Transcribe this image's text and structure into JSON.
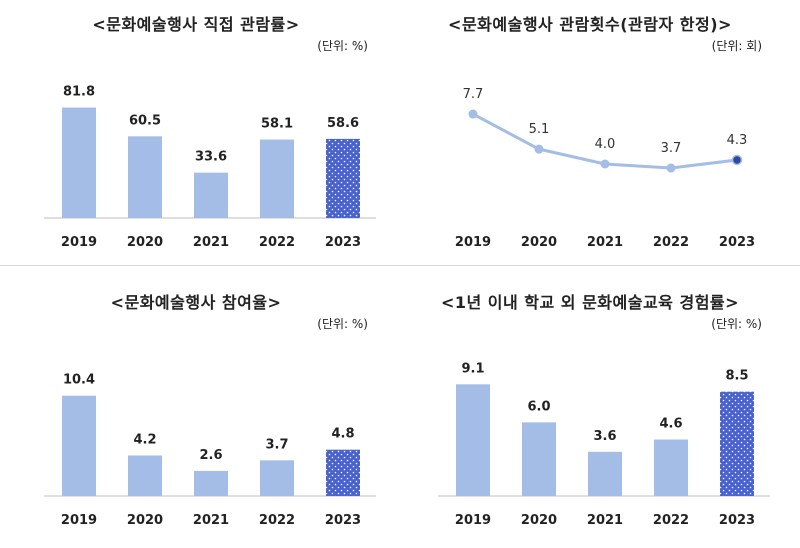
{
  "chart_data": [
    {
      "type": "bar",
      "title": "<문화예술행사 직접 관람률>",
      "unit": "(단위: %)",
      "categories": [
        "2019",
        "2020",
        "2021",
        "2022",
        "2023"
      ],
      "values": [
        81.8,
        60.5,
        33.6,
        58.1,
        58.6
      ],
      "value_labels": [
        "81.8",
        "60.5",
        "33.6",
        "58.1",
        "58.6"
      ],
      "ylim": [
        0,
        100
      ],
      "highlight_last": true,
      "colors": {
        "bar": "#a3bde6",
        "highlight": "#4a63c9",
        "dot": "#ffffff"
      }
    },
    {
      "type": "line",
      "title": "<문화예술행사 관람횟수(관람자 한정)>",
      "unit": "(단위: 회)",
      "categories": [
        "2019",
        "2020",
        "2021",
        "2022",
        "2023"
      ],
      "values": [
        7.7,
        5.1,
        4.0,
        3.7,
        4.3
      ],
      "value_labels": [
        "7.7",
        "5.1",
        "4.0",
        "3.7",
        "4.3"
      ],
      "ylim": [
        0,
        10
      ],
      "highlight_last": true,
      "colors": {
        "line": "#a3bde6",
        "marker": "#a3bde6",
        "highlight": "#2f4a9e"
      }
    },
    {
      "type": "bar",
      "title": "<문화예술행사 참여율>",
      "unit": "(단위: %)",
      "categories": [
        "2019",
        "2020",
        "2021",
        "2022",
        "2023"
      ],
      "values": [
        10.4,
        4.2,
        2.6,
        3.7,
        4.8
      ],
      "value_labels": [
        "10.4",
        "4.2",
        "2.6",
        "3.7",
        "4.8"
      ],
      "ylim": [
        0,
        14
      ],
      "highlight_last": true,
      "colors": {
        "bar": "#a3bde6",
        "highlight": "#4a63c9",
        "dot": "#ffffff"
      }
    },
    {
      "type": "bar",
      "title": "<1년 이내 학교 외 문화예술교육 경험률>",
      "unit": "(단위: %)",
      "categories": [
        "2019",
        "2020",
        "2021",
        "2022",
        "2023"
      ],
      "values": [
        9.1,
        6.0,
        3.6,
        4.6,
        8.5
      ],
      "value_labels": [
        "9.1",
        "6.0",
        "3.6",
        "4.6",
        "8.5"
      ],
      "ylim": [
        0,
        11
      ],
      "highlight_last": true,
      "colors": {
        "bar": "#a3bde6",
        "highlight": "#4a63c9",
        "dot": "#ffffff"
      }
    }
  ]
}
